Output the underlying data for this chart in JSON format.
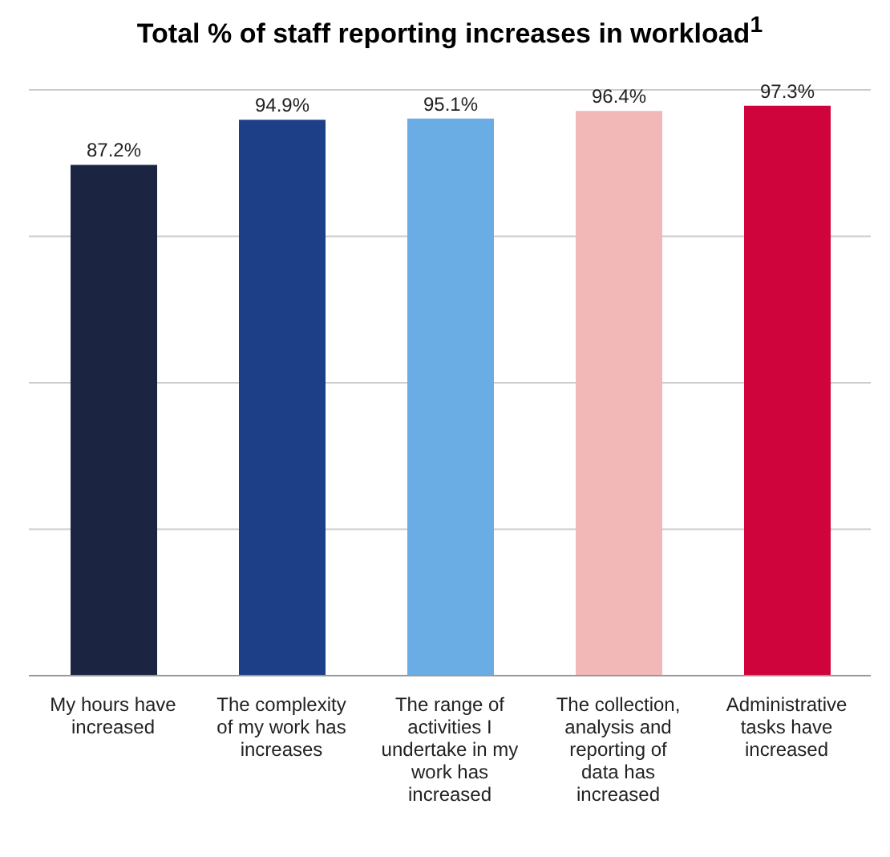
{
  "chart_data": {
    "type": "bar",
    "title": "Total % of staff reporting increases in workload$^{1}$",
    "categories": [
      "My hours have increased",
      "The complexity of my work has increases",
      "The range of activities I undertake in my work has increased",
      "The collection, analysis and reporting of data has increased",
      "Administrative tasks have increased"
    ],
    "values": [
      87.2,
      94.9,
      95.1,
      96.4,
      97.3
    ],
    "value_labels": [
      "87.2%",
      "94.9%",
      "95.1%",
      "96.4%",
      "97.3%"
    ],
    "colors": [
      "#1b2541",
      "#1d3f87",
      "#6aade4",
      "#f2b8b8",
      "#d0043c"
    ],
    "tick_labels": "x",
    "grid": "y"
  }
}
